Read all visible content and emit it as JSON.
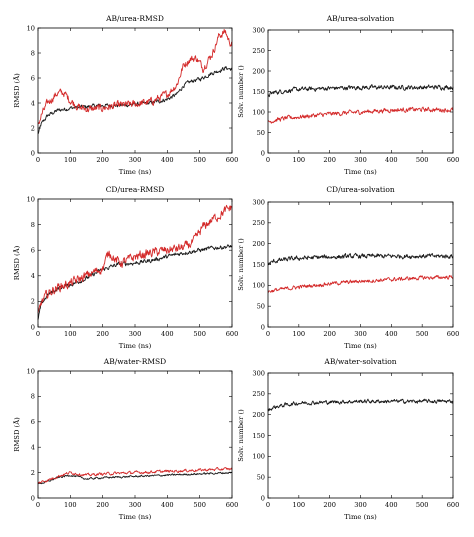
{
  "colors": {
    "black_series": "#1a1a1a",
    "red_series": "#d42a2a",
    "axes": "#000000"
  },
  "chart_data": [
    {
      "type": "line",
      "title": "AB/urea-RMSD",
      "xlabel": "Time (ns)",
      "ylabel": "RMSD (Å)",
      "xlim": [
        0,
        600
      ],
      "ylim": [
        0,
        10
      ],
      "xticks": [
        0,
        100,
        200,
        300,
        400,
        500,
        600
      ],
      "yticks": [
        0,
        2,
        4,
        6,
        8,
        10
      ],
      "grid": false,
      "series": [
        {
          "color": "#1a1a1a",
          "noise": 0.18,
          "x": [
            0,
            10,
            30,
            60,
            100,
            150,
            200,
            250,
            300,
            350,
            400,
            430,
            450,
            480,
            500,
            530,
            560,
            580,
            600
          ],
          "y": [
            1.5,
            2.3,
            3.0,
            3.4,
            3.6,
            3.7,
            3.8,
            3.8,
            3.9,
            4.0,
            4.3,
            4.7,
            5.4,
            5.8,
            5.9,
            6.3,
            6.6,
            6.8,
            6.7
          ]
        },
        {
          "color": "#d42a2a",
          "noise": 0.35,
          "x": [
            0,
            10,
            30,
            60,
            80,
            100,
            130,
            160,
            200,
            250,
            300,
            350,
            400,
            430,
            450,
            470,
            490,
            510,
            540,
            560,
            580,
            590,
            600
          ],
          "y": [
            2.2,
            3.0,
            4.0,
            4.8,
            4.8,
            4.2,
            3.6,
            3.5,
            3.6,
            3.8,
            3.9,
            4.1,
            4.7,
            5.5,
            7.0,
            7.5,
            7.6,
            6.8,
            8.0,
            9.4,
            9.7,
            9.0,
            8.7
          ]
        }
      ]
    },
    {
      "type": "line",
      "title": "AB/urea-solvation",
      "xlabel": "Time (ns)",
      "ylabel": "Solv. number ()",
      "xlim": [
        0,
        600
      ],
      "ylim": [
        0,
        300
      ],
      "xticks": [
        0,
        100,
        200,
        300,
        400,
        500,
        600
      ],
      "yticks": [
        0,
        50,
        100,
        150,
        200,
        250,
        300
      ],
      "grid": false,
      "series": [
        {
          "color": "#1a1a1a",
          "noise": 6,
          "x": [
            0,
            20,
            60,
            100,
            200,
            300,
            400,
            500,
            600
          ],
          "y": [
            140,
            148,
            152,
            155,
            158,
            160,
            160,
            160,
            161
          ]
        },
        {
          "color": "#d42a2a",
          "noise": 6,
          "x": [
            0,
            20,
            60,
            100,
            200,
            300,
            400,
            500,
            600
          ],
          "y": [
            75,
            80,
            85,
            88,
            95,
            100,
            105,
            106,
            105
          ]
        }
      ]
    },
    {
      "type": "line",
      "title": "CD/urea-RMSD",
      "xlabel": "Time (ns)",
      "ylabel": "RMSD (Å)",
      "xlim": [
        0,
        600
      ],
      "ylim": [
        0,
        10
      ],
      "xticks": [
        0,
        100,
        200,
        300,
        400,
        500,
        600
      ],
      "yticks": [
        0,
        2,
        4,
        6,
        8,
        10
      ],
      "grid": false,
      "series": [
        {
          "color": "#1a1a1a",
          "noise": 0.18,
          "x": [
            0,
            10,
            30,
            60,
            100,
            150,
            200,
            250,
            300,
            350,
            400,
            450,
            500,
            550,
            600
          ],
          "y": [
            0.5,
            1.8,
            2.5,
            3.0,
            3.3,
            3.8,
            4.5,
            4.9,
            5.0,
            5.2,
            5.5,
            5.8,
            6.0,
            6.2,
            6.3
          ]
        },
        {
          "color": "#d42a2a",
          "noise": 0.4,
          "x": [
            0,
            10,
            30,
            60,
            100,
            150,
            200,
            220,
            240,
            260,
            300,
            350,
            400,
            450,
            480,
            510,
            540,
            570,
            600
          ],
          "y": [
            0.8,
            1.9,
            2.6,
            3.1,
            3.4,
            4.0,
            4.6,
            5.9,
            5.2,
            5.0,
            5.5,
            5.8,
            6.0,
            6.2,
            6.6,
            7.8,
            8.4,
            8.9,
            9.4
          ]
        }
      ]
    },
    {
      "type": "line",
      "title": "CD/urea-solvation",
      "xlabel": "Time (ns)",
      "ylabel": "Solv. number ()",
      "xlim": [
        0,
        600
      ],
      "ylim": [
        0,
        300
      ],
      "xticks": [
        0,
        100,
        200,
        300,
        400,
        500,
        600
      ],
      "yticks": [
        0,
        50,
        100,
        150,
        200,
        250,
        300
      ],
      "grid": false,
      "series": [
        {
          "color": "#1a1a1a",
          "noise": 6,
          "x": [
            0,
            20,
            60,
            100,
            200,
            300,
            400,
            500,
            600
          ],
          "y": [
            150,
            158,
            162,
            165,
            168,
            170,
            170,
            170,
            170
          ]
        },
        {
          "color": "#d42a2a",
          "noise": 5,
          "x": [
            0,
            20,
            60,
            100,
            200,
            300,
            400,
            500,
            600
          ],
          "y": [
            85,
            88,
            92,
            96,
            104,
            110,
            114,
            118,
            120
          ]
        }
      ]
    },
    {
      "type": "line",
      "title": "AB/water-RMSD",
      "xlabel": "Time (ns)",
      "ylabel": "RMSD (Å)",
      "xlim": [
        0,
        600
      ],
      "ylim": [
        0,
        10
      ],
      "xticks": [
        0,
        100,
        200,
        300,
        400,
        500,
        600
      ],
      "yticks": [
        0,
        2,
        4,
        6,
        8,
        10
      ],
      "grid": false,
      "series": [
        {
          "color": "#1a1a1a",
          "noise": 0.08,
          "x": [
            0,
            30,
            60,
            100,
            150,
            200,
            300,
            400,
            500,
            600
          ],
          "y": [
            1.1,
            1.3,
            1.6,
            1.8,
            1.5,
            1.6,
            1.7,
            1.8,
            1.9,
            2.0
          ]
        },
        {
          "color": "#d42a2a",
          "noise": 0.12,
          "x": [
            0,
            30,
            60,
            100,
            150,
            200,
            300,
            400,
            500,
            600
          ],
          "y": [
            1.2,
            1.4,
            1.7,
            2.0,
            1.8,
            1.9,
            2.0,
            2.1,
            2.2,
            2.3
          ]
        }
      ]
    },
    {
      "type": "line",
      "title": "AB/water-solvation",
      "xlabel": "Time (ns)",
      "ylabel": "Solv. number ()",
      "xlim": [
        0,
        600
      ],
      "ylim": [
        0,
        300
      ],
      "xticks": [
        0,
        100,
        200,
        300,
        400,
        500,
        600
      ],
      "yticks": [
        0,
        50,
        100,
        150,
        200,
        250,
        300
      ],
      "grid": false,
      "series": [
        {
          "color": "#1a1a1a",
          "noise": 5,
          "x": [
            0,
            20,
            60,
            100,
            200,
            300,
            400,
            500,
            600
          ],
          "y": [
            210,
            218,
            224,
            228,
            230,
            232,
            232,
            232,
            232
          ]
        }
      ]
    }
  ]
}
